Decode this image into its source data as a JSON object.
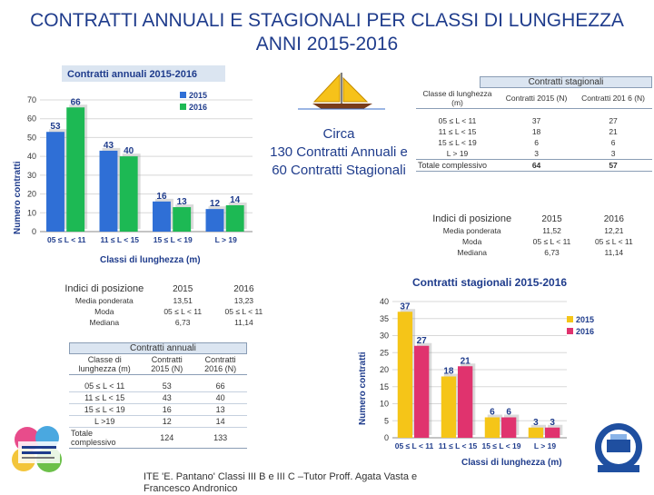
{
  "title": {
    "line1": "CONTRATTI ANNUALI E STAGIONALI PER CLASSI DI LUNGHEZZA",
    "line2": "ANNI 2015-2016"
  },
  "summary": {
    "line1": "Circa",
    "line2": "130 Contratti Annuali e",
    "line3": "60 Contratti Stagionali"
  },
  "footer": {
    "line1": "ITE 'E. Pantano' Classi III B e III C –Tutor Proff. Agata Vasta e",
    "line2": "Francesco Andronico"
  },
  "seasonal_table": {
    "caption": "Contratti stagionali",
    "headers": [
      "Classe di lunghezza (m)",
      "Contratti 2015 (N)",
      "Contratti 201 6 (N)"
    ],
    "rows": [
      [
        "05 ≤ L < 11",
        "37",
        "27"
      ],
      [
        "11 ≤ L < 15",
        "18",
        "21"
      ],
      [
        "15 ≤ L < 19",
        "6",
        "6"
      ],
      [
        "L > 19",
        "3",
        "3"
      ]
    ],
    "total": [
      "Totale complessivo",
      "64",
      "57"
    ]
  },
  "seasonal_stats": {
    "heading": "Indici di posizione",
    "col1": "2015",
    "col2": "2016",
    "rows": [
      [
        "Media ponderata",
        "11,52",
        "12,21"
      ],
      [
        "Moda",
        "05 ≤ L < 11",
        "05 ≤ L < 11"
      ],
      [
        "Mediana",
        "6,73",
        "11,14"
      ]
    ]
  },
  "annual_stats": {
    "heading": "Indici di posizione",
    "col1": "2015",
    "col2": "2016",
    "rows": [
      [
        "Media ponderata",
        "13,51",
        "13,23"
      ],
      [
        "Moda",
        "05 ≤ L < 11",
        "05 ≤ L < 11"
      ],
      [
        "Mediana",
        "6,73",
        "11,14"
      ]
    ]
  },
  "annual_table": {
    "caption": "Contratti annuali",
    "headers": [
      "Classe di lunghezza (m)",
      "Contratti 2015 (N)",
      "Contratti 2016 (N)"
    ],
    "rows": [
      [
        "05 ≤ L < 11",
        "53",
        "66"
      ],
      [
        "11 ≤ L < 15",
        "43",
        "40"
      ],
      [
        "15 ≤ L < 19",
        "16",
        "13"
      ],
      [
        "L >19",
        "12",
        "14"
      ]
    ],
    "total": [
      "Totale complessivo",
      "124",
      "133"
    ]
  },
  "colors": {
    "blue2015": "#2f6fd6",
    "green2016": "#1db954",
    "yellow2015": "#f5c518",
    "red2016": "#e0336e",
    "title": "#1f3c8c"
  },
  "chart_data": [
    {
      "type": "bar",
      "title": "Contratti annuali 2015-2016",
      "xlabel": "Classi di lunghezza (m)",
      "ylabel": "Numero contratti",
      "categories": [
        "05 ≤ L < 11",
        "11 ≤ L < 15",
        "15 ≤ L < 19",
        "L > 19"
      ],
      "series": [
        {
          "name": "2015",
          "values": [
            53,
            43,
            16,
            12
          ]
        },
        {
          "name": "2016",
          "values": [
            66,
            40,
            13,
            14
          ]
        }
      ],
      "ylim": [
        0,
        70
      ],
      "yticks": [
        0,
        10,
        20,
        30,
        40,
        50,
        60,
        70
      ],
      "legend": "top-right",
      "grid": true
    },
    {
      "type": "bar",
      "title": "Contratti stagionali 2015-2016",
      "xlabel": "Classi di lunghezza (m)",
      "ylabel": "Numero contratti",
      "categories": [
        "05 ≤ L < 11",
        "11 ≤ L < 15",
        "15 ≤ L < 19",
        "L > 19"
      ],
      "series": [
        {
          "name": "2015",
          "values": [
            37,
            18,
            6,
            3
          ]
        },
        {
          "name": "2016",
          "values": [
            27,
            21,
            6,
            3
          ]
        }
      ],
      "ylim": [
        0,
        40
      ],
      "yticks": [
        0,
        5,
        10,
        15,
        20,
        25,
        30,
        35,
        40
      ],
      "legend": "right",
      "grid": true
    }
  ]
}
